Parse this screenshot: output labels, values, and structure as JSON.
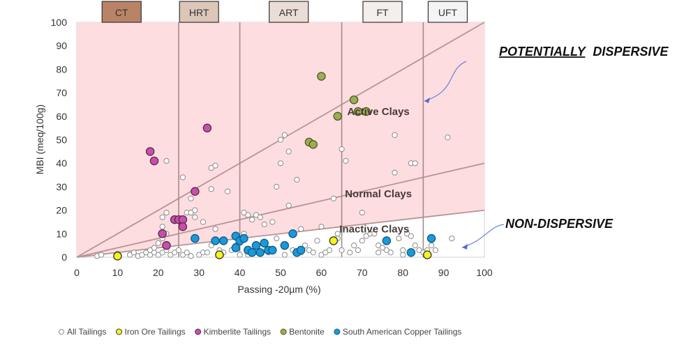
{
  "chart_data": {
    "type": "scatter",
    "xlabel": "Passing -20µm (%)",
    "ylabel": "MBI (meq/100g)",
    "xlim": [
      0,
      100
    ],
    "ylim": [
      0,
      100
    ],
    "x_ticks": [
      "0",
      "10",
      "20",
      "30",
      "40",
      "50",
      "60",
      "70",
      "80",
      "90",
      "100"
    ],
    "y_ticks": [
      "0",
      "10",
      "20",
      "30",
      "40",
      "50",
      "60",
      "70",
      "80",
      "90",
      "100"
    ],
    "grid": false,
    "legend_position": "bottom",
    "zones": [
      {
        "label": "Active Clays",
        "x": 74,
        "y": 62
      },
      {
        "label": "Normal Clays",
        "x": 74,
        "y": 27
      },
      {
        "label": "Inactive Clays",
        "x": 73,
        "y": 12
      }
    ],
    "boundary_lines": [
      {
        "from": [
          0,
          0
        ],
        "to": [
          100,
          100
        ]
      },
      {
        "from": [
          0,
          0
        ],
        "to": [
          100,
          40
        ]
      },
      {
        "from": [
          0,
          0
        ],
        "to": [
          100,
          20
        ]
      }
    ],
    "vertical_lines": [
      25,
      40,
      65,
      85
    ],
    "bands": [
      {
        "label": "CT",
        "x": 11,
        "color": "#b98466"
      },
      {
        "label": "HRT",
        "x": 30,
        "color": "#dcc6b8"
      },
      {
        "label": "ART",
        "x": 52,
        "color": "#e9ddd5"
      },
      {
        "label": "FT",
        "x": 75,
        "color": "#f3efec"
      },
      {
        "label": "UFT",
        "x": 91,
        "color": "#f4f4f4"
      }
    ],
    "annotations": [
      {
        "text": "POTENTIALLY",
        "underline": true
      },
      {
        "text": "DISPERSIVE",
        "underline": false
      },
      {
        "text": "NON-DISPERSIVE",
        "underline": false
      }
    ],
    "series": [
      {
        "name": "All Tailings",
        "color": "#ffffff",
        "edge": "#8a8a8a",
        "points": [
          [
            5,
            0.5
          ],
          [
            6,
            1
          ],
          [
            10,
            1.5
          ],
          [
            13,
            1
          ],
          [
            14,
            2
          ],
          [
            15,
            0.5
          ],
          [
            16,
            1
          ],
          [
            17,
            2
          ],
          [
            18,
            1
          ],
          [
            18,
            3
          ],
          [
            19,
            2
          ],
          [
            19,
            4
          ],
          [
            20,
            1
          ],
          [
            20,
            6
          ],
          [
            21,
            2
          ],
          [
            21,
            8
          ],
          [
            21,
            13
          ],
          [
            21,
            17
          ],
          [
            22,
            3
          ],
          [
            22,
            10
          ],
          [
            22,
            41
          ],
          [
            22,
            19
          ],
          [
            23,
            1
          ],
          [
            24,
            2
          ],
          [
            25,
            3
          ],
          [
            26,
            1
          ],
          [
            26,
            34
          ],
          [
            27,
            2
          ],
          [
            27,
            19
          ],
          [
            28,
            0.5
          ],
          [
            28,
            19
          ],
          [
            28,
            25
          ],
          [
            29,
            20
          ],
          [
            29,
            17
          ],
          [
            30,
            1
          ],
          [
            31,
            2
          ],
          [
            31,
            15
          ],
          [
            32,
            2
          ],
          [
            33,
            5
          ],
          [
            33,
            29
          ],
          [
            33,
            38
          ],
          [
            34,
            39
          ],
          [
            34,
            12
          ],
          [
            35,
            3
          ],
          [
            36,
            2
          ],
          [
            37,
            28
          ],
          [
            38,
            3
          ],
          [
            39,
            5
          ],
          [
            40,
            6
          ],
          [
            40,
            1
          ],
          [
            41,
            19
          ],
          [
            41,
            10
          ],
          [
            42,
            1
          ],
          [
            42,
            18
          ],
          [
            43,
            16
          ],
          [
            44,
            18
          ],
          [
            45,
            17
          ],
          [
            46,
            14
          ],
          [
            47,
            2
          ],
          [
            48,
            15
          ],
          [
            49,
            30
          ],
          [
            49,
            8
          ],
          [
            50,
            50
          ],
          [
            50,
            40
          ],
          [
            51,
            52
          ],
          [
            51,
            1
          ],
          [
            52,
            45
          ],
          [
            52,
            22
          ],
          [
            53,
            3
          ],
          [
            53,
            10
          ],
          [
            54,
            33
          ],
          [
            55,
            2
          ],
          [
            55,
            12
          ],
          [
            56,
            5
          ],
          [
            57,
            3
          ],
          [
            58,
            2
          ],
          [
            59,
            7
          ],
          [
            60,
            13
          ],
          [
            60,
            1
          ],
          [
            61,
            2
          ],
          [
            62,
            3
          ],
          [
            63,
            25
          ],
          [
            64,
            8
          ],
          [
            64,
            10
          ],
          [
            65,
            46
          ],
          [
            65,
            3
          ],
          [
            66,
            41
          ],
          [
            67,
            2
          ],
          [
            68,
            5
          ],
          [
            69,
            3
          ],
          [
            70,
            19
          ],
          [
            70,
            7
          ],
          [
            71,
            9
          ],
          [
            72,
            10
          ],
          [
            73,
            10
          ],
          [
            74,
            2
          ],
          [
            74,
            5
          ],
          [
            75,
            4
          ],
          [
            76,
            3
          ],
          [
            77,
            2
          ],
          [
            78,
            52
          ],
          [
            78,
            36
          ],
          [
            79,
            8
          ],
          [
            80,
            1
          ],
          [
            80,
            3
          ],
          [
            81,
            10
          ],
          [
            82,
            40
          ],
          [
            82,
            9
          ],
          [
            83,
            40
          ],
          [
            83,
            5
          ],
          [
            84,
            3
          ],
          [
            85,
            2
          ],
          [
            86,
            3
          ],
          [
            87,
            5
          ],
          [
            88,
            3
          ],
          [
            91,
            51
          ],
          [
            92,
            8
          ]
        ]
      },
      {
        "name": "Iron Ore Tailings",
        "color": "#f5f51b",
        "edge": "#333333",
        "points": [
          [
            10,
            0.5
          ],
          [
            35,
            1
          ],
          [
            63,
            7
          ],
          [
            86,
            1
          ]
        ]
      },
      {
        "name": "Kimberlite Tailings",
        "color": "#c94fa8",
        "edge": "#5a2a50",
        "points": [
          [
            18,
            45
          ],
          [
            19,
            41
          ],
          [
            21,
            10
          ],
          [
            22,
            5
          ],
          [
            24,
            16
          ],
          [
            25,
            16
          ],
          [
            26,
            16
          ],
          [
            26,
            13
          ],
          [
            29,
            28
          ],
          [
            32,
            55
          ]
        ]
      },
      {
        "name": "Bentonite",
        "color": "#9cad55",
        "edge": "#4a5a20",
        "points": [
          [
            60,
            77
          ],
          [
            57,
            49
          ],
          [
            58,
            48
          ],
          [
            64,
            60
          ],
          [
            68,
            67
          ],
          [
            69,
            62
          ],
          [
            71,
            62
          ]
        ]
      },
      {
        "name": "South American Copper Tailings",
        "color": "#1a9ad9",
        "edge": "#0f5a88",
        "points": [
          [
            29,
            8
          ],
          [
            34,
            7
          ],
          [
            36,
            7
          ],
          [
            39,
            4
          ],
          [
            39,
            9
          ],
          [
            40,
            7
          ],
          [
            41,
            8
          ],
          [
            42,
            3
          ],
          [
            43,
            2
          ],
          [
            44,
            5
          ],
          [
            45,
            2
          ],
          [
            46,
            6
          ],
          [
            47,
            3
          ],
          [
            48,
            3
          ],
          [
            51,
            5
          ],
          [
            53,
            10
          ],
          [
            54,
            2
          ],
          [
            55,
            3
          ],
          [
            76,
            7
          ],
          [
            82,
            2
          ],
          [
            87,
            8
          ]
        ]
      }
    ]
  }
}
